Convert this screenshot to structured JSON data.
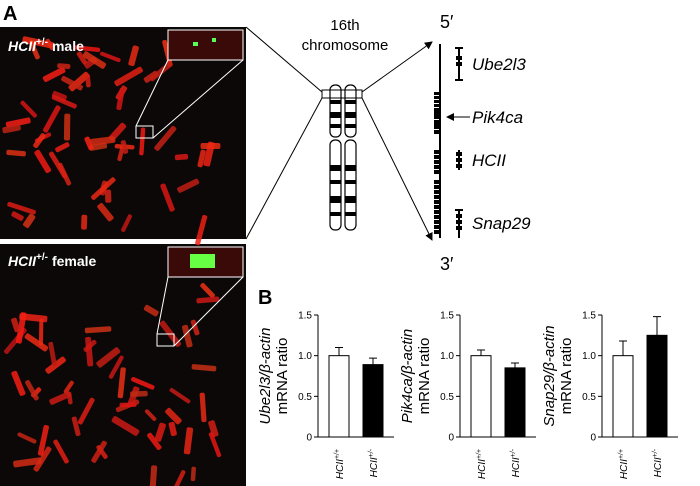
{
  "panel_a": {
    "label": "A",
    "male": {
      "gene": "HCII",
      "genotype": "+/-",
      "sex": "male"
    },
    "female": {
      "gene": "HCII",
      "genotype": "+/-",
      "sex": "female"
    },
    "chromosome": [
      "16th",
      "chromosome"
    ],
    "ends": [
      "5′",
      "3′"
    ],
    "genes": [
      "Ube2l3",
      "Pik4ca",
      "HCII",
      "Snap29"
    ]
  },
  "panel_b": {
    "label": "B"
  },
  "chart_data": [
    {
      "type": "bar",
      "y_label": "Ube2l3/β-actin",
      "y_label_2": "mRNA ratio",
      "categories": [
        "HCII+/+",
        "HCII+/-"
      ],
      "values": [
        1.0,
        0.89
      ],
      "errors": [
        0.1,
        0.08
      ],
      "colors": [
        "#ffffff",
        "#000000"
      ],
      "ylim": [
        0,
        1.5
      ],
      "yticks": [
        0,
        0.5,
        {
          "value": 1,
          "label": "1.0"
        },
        1.5
      ]
    },
    {
      "type": "bar",
      "y_label": "Pik4ca/β-actin",
      "y_label_2": "mRNA ratio",
      "categories": [
        "HCII+/+",
        "HCII+/-"
      ],
      "values": [
        1.0,
        0.85
      ],
      "errors": [
        0.07,
        0.06
      ],
      "colors": [
        "#ffffff",
        "#000000"
      ],
      "ylim": [
        0,
        1.5
      ],
      "yticks": [
        0,
        0.5,
        {
          "value": 1,
          "label": "1.0"
        },
        1.5
      ]
    },
    {
      "type": "bar",
      "y_label": "Snap29/β-actin",
      "y_label_2": "mRNA ratio",
      "categories": [
        "HCII+/+",
        "HCII+/-"
      ],
      "values": [
        1.0,
        1.25
      ],
      "errors": [
        0.18,
        0.23
      ],
      "colors": [
        "#ffffff",
        "#000000"
      ],
      "ylim": [
        0,
        1.5
      ],
      "yticks": [
        0,
        0.5,
        {
          "value": 1,
          "label": "1.0"
        },
        1.5
      ]
    }
  ]
}
